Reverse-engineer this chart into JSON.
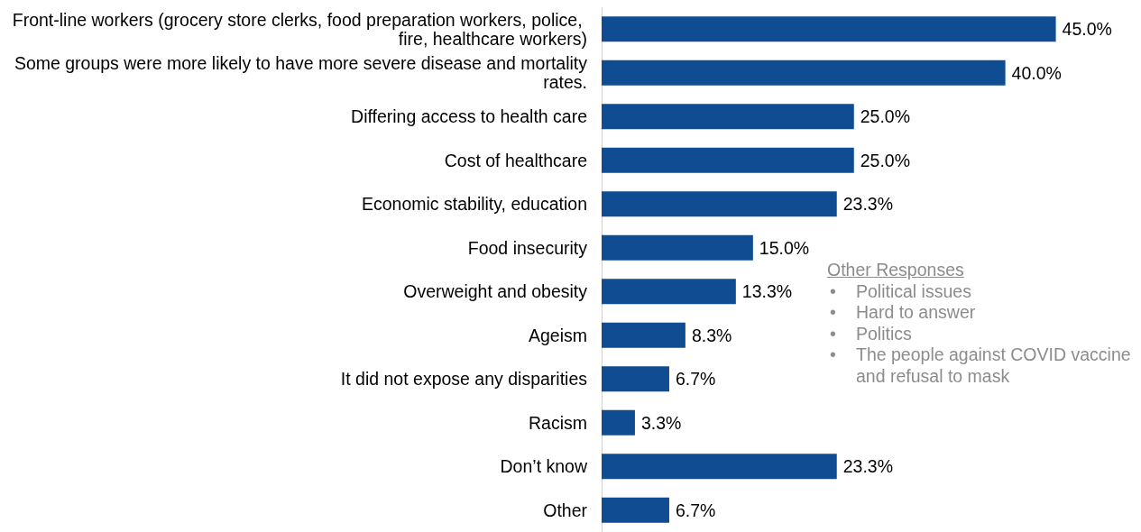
{
  "chart_data": {
    "type": "bar",
    "orientation": "horizontal",
    "categories": [
      "Front-line workers (grocery store clerks, food preparation workers, police, fire, healthcare workers)",
      "Some groups were more likely to have more severe disease and mortality rates.",
      "Differing access to health care",
      "Cost of healthcare",
      "Economic stability, education",
      "Food insecurity",
      "Overweight and obesity",
      "Ageism",
      "It did not expose any disparities",
      "Racism",
      "Don’t know",
      "Other"
    ],
    "values": [
      45.0,
      40.0,
      25.0,
      25.0,
      23.3,
      15.0,
      13.3,
      8.3,
      6.7,
      3.3,
      23.3,
      6.7
    ],
    "value_labels": [
      "45.0%",
      "40.0%",
      "25.0%",
      "25.0%",
      "23.3%",
      "15.0%",
      "13.3%",
      "8.3%",
      "6.7%",
      "3.3%",
      "23.3%",
      "6.7%"
    ],
    "color": "#0f4c92",
    "annotations": [
      "Other Responses",
      "•\tPolitical issues",
      "•\tHard to answer",
      "•\tPolitics",
      "•\tThe people against COVID vaccine and refusal to mask"
    ]
  }
}
